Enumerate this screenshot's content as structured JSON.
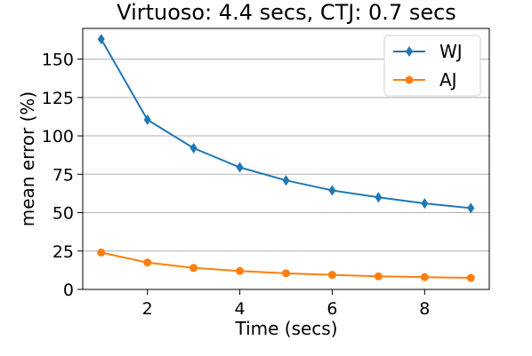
{
  "chart_data": {
    "type": "line",
    "title": "Virtuoso: 4.4 secs, CTJ: 0.7 secs",
    "xlabel": "Time (secs)",
    "ylabel": "mean error (%)",
    "xlim": [
      0.6,
      9.4
    ],
    "ylim": [
      0,
      170
    ],
    "xticks": [
      2,
      4,
      6,
      8
    ],
    "yticks": [
      0,
      25,
      50,
      75,
      100,
      125,
      150
    ],
    "grid": "horizontal",
    "legend_position": "top-right",
    "x": [
      1,
      2,
      3,
      4,
      5,
      6,
      7,
      8,
      9
    ],
    "series": [
      {
        "name": "WJ",
        "color": "#1f77b4",
        "marker": "diamond",
        "values": [
          163,
          110.5,
          92,
          79.5,
          71,
          64.5,
          60,
          56,
          53
        ]
      },
      {
        "name": "AJ",
        "color": "#ff7f0e",
        "marker": "circle",
        "values": [
          24,
          17.5,
          14,
          12,
          10.5,
          9.5,
          8.5,
          8,
          7.5
        ]
      }
    ]
  }
}
